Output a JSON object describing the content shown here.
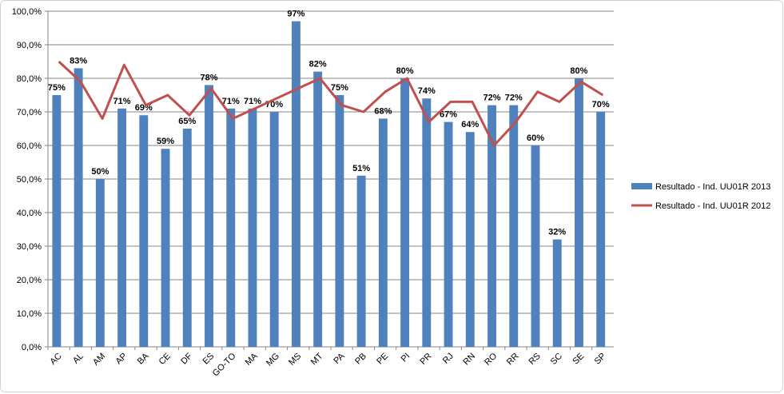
{
  "chart_data": {
    "type": "bar",
    "categories": [
      "AC",
      "AL",
      "AM",
      "AP",
      "BA",
      "CE",
      "DF",
      "ES",
      "GO-TO",
      "MA",
      "MG",
      "MS",
      "MT",
      "PA",
      "PB",
      "PE",
      "PI",
      "PR",
      "RJ",
      "RN",
      "RO",
      "RR",
      "RS",
      "SC",
      "SE",
      "SP"
    ],
    "series": [
      {
        "name": "Resultado - Ind. UU01R 2013",
        "type": "bar",
        "color": "#4f81bd",
        "values": [
          75,
          83,
          50,
          71,
          69,
          59,
          65,
          78,
          71,
          71,
          70,
          97,
          82,
          75,
          51,
          68,
          80,
          74,
          67,
          64,
          72,
          72,
          60,
          32,
          80,
          70
        ],
        "value_labels": [
          "75%",
          "83%",
          "50%",
          "71%",
          "69%",
          "59%",
          "65%",
          "78%",
          "71%",
          "71%",
          "70%",
          "97%",
          "82%",
          "75%",
          "51%",
          "68%",
          "80%",
          "74%",
          "67%",
          "64%",
          "72%",
          "72%",
          "60%",
          "32%",
          "80%",
          "70%"
        ]
      },
      {
        "name": "Resultado - Ind. UU01R 2012",
        "type": "line",
        "color": "#c0504d",
        "values": [
          85,
          79,
          68,
          84,
          72,
          75,
          69,
          77,
          68,
          71,
          74,
          77,
          80,
          72,
          70,
          76,
          80,
          67,
          73,
          73,
          60,
          67,
          76,
          73,
          79,
          75
        ]
      }
    ],
    "ylim": [
      0,
      100
    ],
    "yticks": [
      {
        "value": 0,
        "label": "0,0%"
      },
      {
        "value": 10,
        "label": "10,0%"
      },
      {
        "value": 20,
        "label": "20,0%"
      },
      {
        "value": 30,
        "label": "30,0%"
      },
      {
        "value": 40,
        "label": "40,0%"
      },
      {
        "value": 50,
        "label": "50,0%"
      },
      {
        "value": 60,
        "label": "60,0%"
      },
      {
        "value": 70,
        "label": "70,0%"
      },
      {
        "value": 80,
        "label": "80,0%"
      },
      {
        "value": 90,
        "label": "90,0%"
      },
      {
        "value": 100,
        "label": "100,0%"
      }
    ],
    "grid": true,
    "legend": "right"
  }
}
